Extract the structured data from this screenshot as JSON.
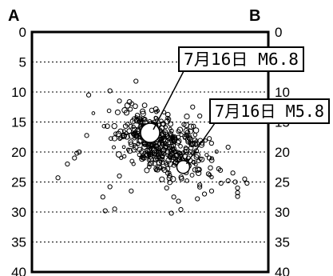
{
  "chart_data": {
    "type": "scatter",
    "title": "",
    "xlabel": "",
    "ylabel": "",
    "corner_labels": {
      "left": "A",
      "right": "B"
    },
    "ylim": [
      0,
      40
    ],
    "y_inverted": true,
    "yticks": [
      "0",
      "5",
      "10",
      "15",
      "20",
      "25",
      "30",
      "35",
      "40"
    ],
    "ytick_values": [
      0,
      5,
      10,
      15,
      20,
      25,
      30,
      35,
      40
    ],
    "xlim": [
      0,
      100
    ],
    "grid": "horizontal-dotted",
    "main_events": [
      {
        "label": "7月16日 M6.8",
        "x": 50,
        "depth": 16.8
      },
      {
        "label": "7月16日 M5.8",
        "x": 64,
        "depth": 22.5
      }
    ],
    "cluster": {
      "x_center": 55,
      "x_spread": 10,
      "depth_center": 18.5,
      "depth_spread": 2.5,
      "point_count": 420
    },
    "scattered_events": [
      {
        "x": 19,
        "depth": 20.2
      },
      {
        "x": 20,
        "depth": 20.0
      },
      {
        "x": 18,
        "depth": 21.0
      },
      {
        "x": 15,
        "depth": 22.0
      },
      {
        "x": 11,
        "depth": 24.3
      },
      {
        "x": 24,
        "depth": 10.5
      },
      {
        "x": 33,
        "depth": 9.8
      },
      {
        "x": 44,
        "depth": 8.2
      },
      {
        "x": 37,
        "depth": 11.5
      },
      {
        "x": 30,
        "depth": 27.5
      },
      {
        "x": 33,
        "depth": 25.8
      },
      {
        "x": 31,
        "depth": 29.8
      },
      {
        "x": 35,
        "depth": 29.5
      },
      {
        "x": 37,
        "depth": 24.0
      },
      {
        "x": 42,
        "depth": 26.5
      },
      {
        "x": 68,
        "depth": 12.5
      },
      {
        "x": 71,
        "depth": 14.0
      },
      {
        "x": 72,
        "depth": 18.5
      },
      {
        "x": 75,
        "depth": 21.0
      },
      {
        "x": 71,
        "depth": 25.5
      },
      {
        "x": 70,
        "depth": 27.8
      },
      {
        "x": 73,
        "depth": 27.0
      },
      {
        "x": 76,
        "depth": 26.5
      },
      {
        "x": 80,
        "depth": 25.2
      },
      {
        "x": 83,
        "depth": 24.8
      },
      {
        "x": 85,
        "depth": 23.5
      },
      {
        "x": 86,
        "depth": 25.0
      },
      {
        "x": 87,
        "depth": 26.0
      },
      {
        "x": 87,
        "depth": 26.8
      },
      {
        "x": 87,
        "depth": 27.4
      },
      {
        "x": 83,
        "depth": 19.2
      },
      {
        "x": 90,
        "depth": 24.5
      },
      {
        "x": 91,
        "depth": 25.2
      },
      {
        "x": 60,
        "depth": 27.5
      },
      {
        "x": 62,
        "depth": 28.2
      },
      {
        "x": 59,
        "depth": 30.2
      },
      {
        "x": 63,
        "depth": 29.6
      },
      {
        "x": 57,
        "depth": 26.0
      },
      {
        "x": 79,
        "depth": 22.8
      }
    ]
  }
}
